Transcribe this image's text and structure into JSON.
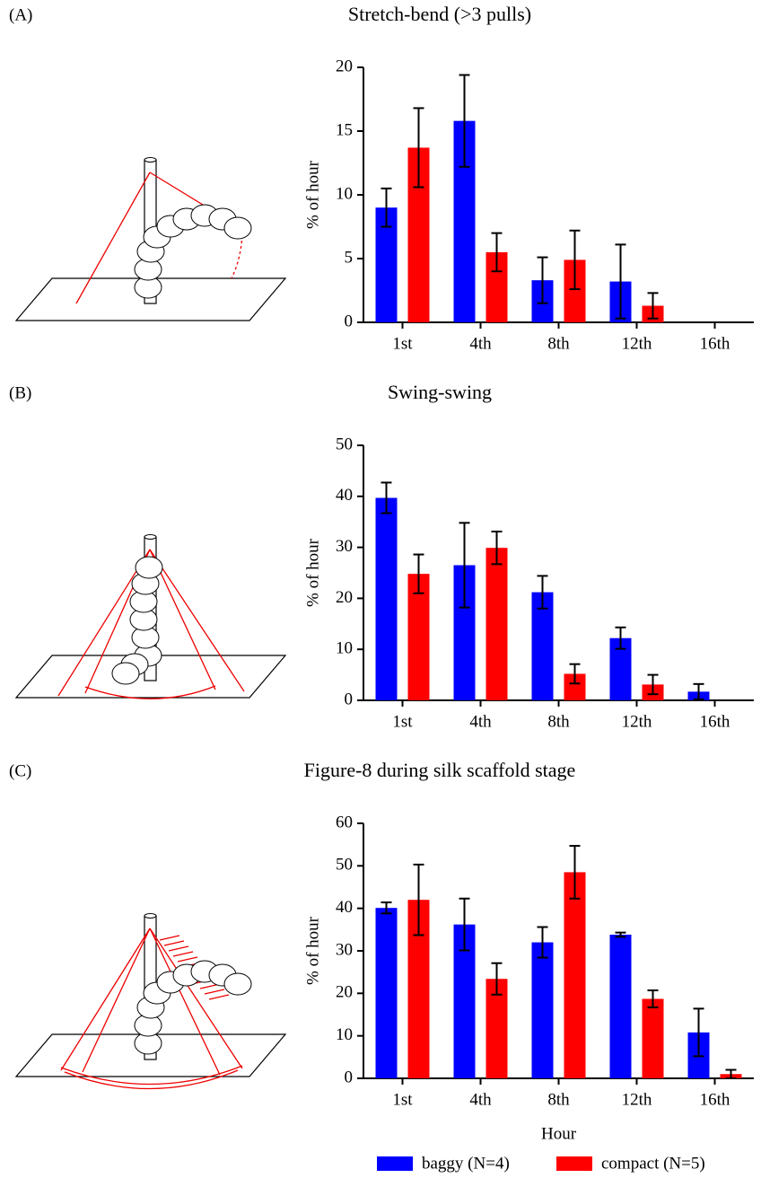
{
  "chart_data": [
    {
      "type": "bar",
      "panel": "(A)",
      "title": "Stretch-bend (>3 pulls)",
      "y_label": "% of hour",
      "categories": [
        "1st",
        "4th",
        "8th",
        "12th",
        "16th"
      ],
      "series": [
        {
          "color": "#0000ff",
          "values": [
            9.0,
            15.8,
            3.3,
            3.2,
            0
          ],
          "errors": [
            1.5,
            3.6,
            1.8,
            2.9,
            0
          ]
        },
        {
          "color": "#ff0000",
          "values": [
            13.7,
            5.5,
            4.9,
            1.3,
            0
          ],
          "errors": [
            3.1,
            1.5,
            2.3,
            1.0,
            0
          ]
        }
      ],
      "ylim": [
        0,
        20
      ],
      "yticks": [
        0,
        5,
        10,
        15,
        20
      ]
    },
    {
      "type": "bar",
      "panel": "(B)",
      "title": "Swing-swing",
      "y_label": "% of hour",
      "categories": [
        "1st",
        "4th",
        "8th",
        "12th",
        "16th"
      ],
      "series": [
        {
          "color": "#0000ff",
          "values": [
            39.7,
            26.5,
            21.2,
            12.2,
            1.7
          ],
          "errors": [
            3.0,
            8.3,
            3.2,
            2.1,
            1.5
          ]
        },
        {
          "color": "#ff0000",
          "values": [
            24.8,
            29.9,
            5.2,
            3.1,
            0
          ],
          "errors": [
            3.8,
            3.2,
            1.9,
            1.9,
            0
          ]
        }
      ],
      "ylim": [
        0,
        50
      ],
      "yticks": [
        0,
        10,
        20,
        30,
        40,
        50
      ]
    },
    {
      "type": "bar",
      "panel": "(C)",
      "title": "Figure-8 during silk scaffold stage",
      "y_label": "% of hour",
      "x_label": "Hour",
      "categories": [
        "1st",
        "4th",
        "8th",
        "12th",
        "16th"
      ],
      "series": [
        {
          "name": "baggy (N=4)",
          "color": "#0000ff",
          "values": [
            40.1,
            36.2,
            32.0,
            33.8,
            10.8
          ],
          "errors": [
            1.3,
            6.1,
            3.6,
            0.5,
            5.6
          ]
        },
        {
          "name": "compact (N=5)",
          "color": "#ff0000",
          "values": [
            42.0,
            23.4,
            48.5,
            18.7,
            1.0
          ],
          "errors": [
            8.3,
            3.7,
            6.2,
            2.0,
            1.0
          ]
        }
      ],
      "ylim": [
        0,
        60
      ],
      "yticks": [
        0,
        10,
        20,
        30,
        40,
        50,
        60
      ]
    }
  ]
}
